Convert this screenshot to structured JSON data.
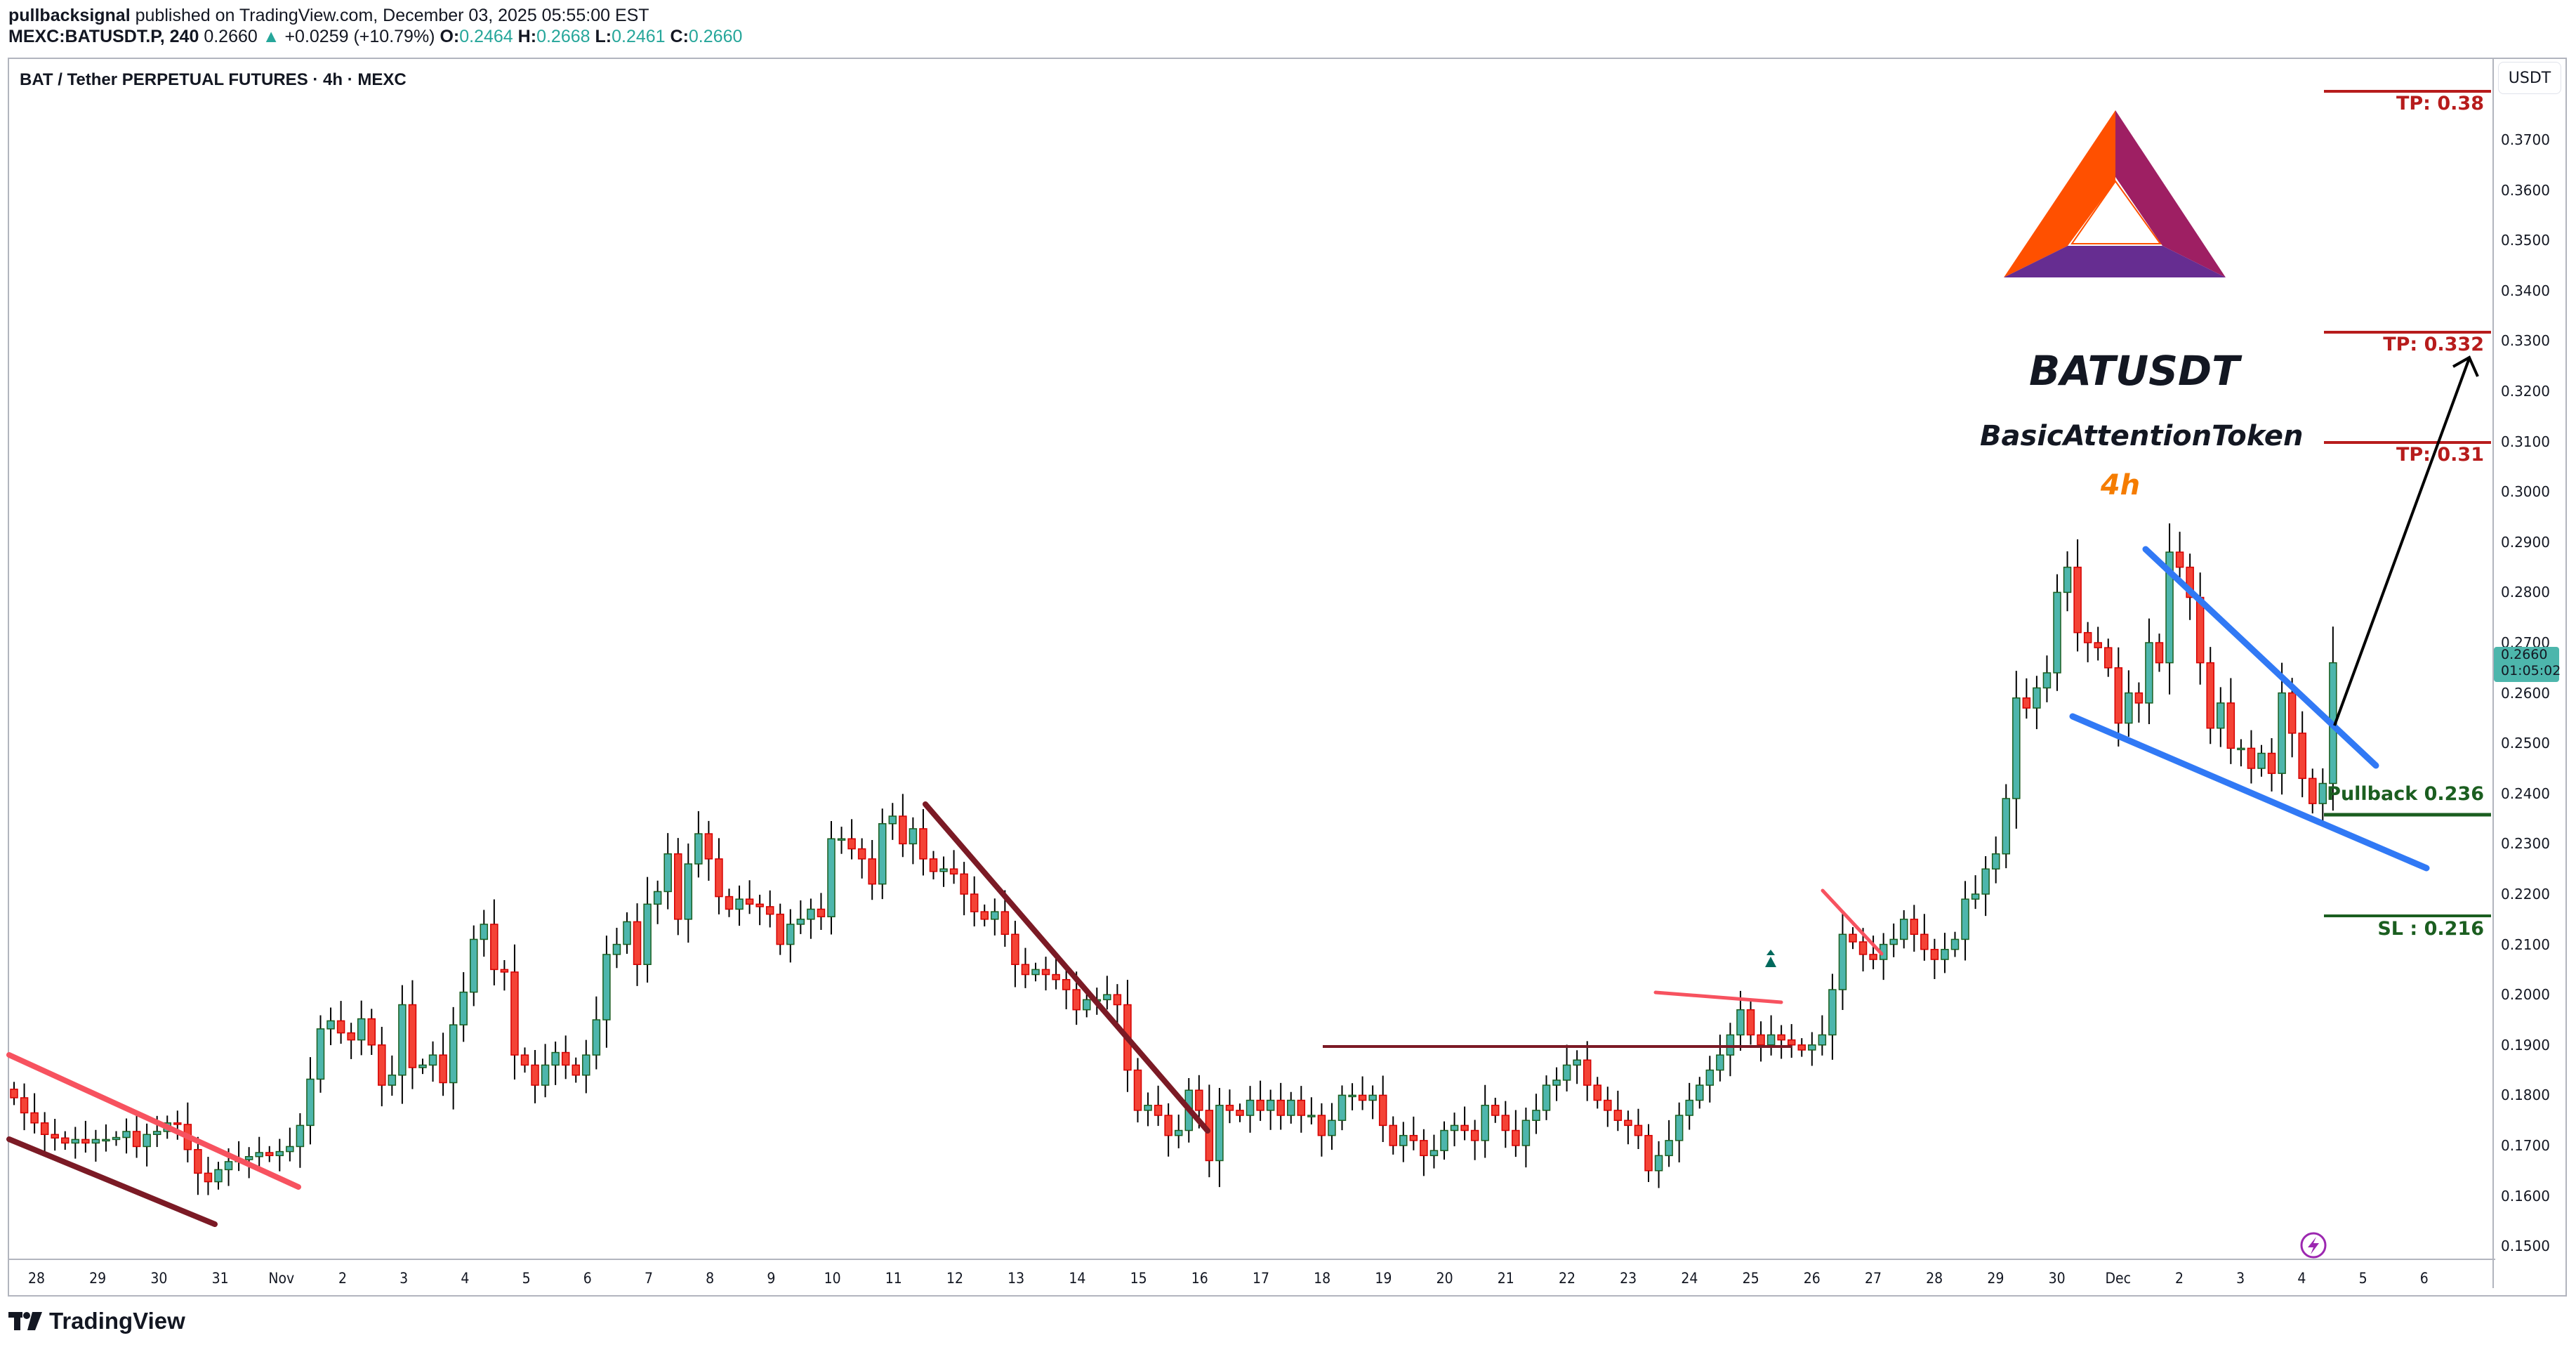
{
  "header": {
    "author": "pullbacksignal",
    "published_text": " published on TradingView.com, December 03, 2025 05:55:00 EST",
    "symbol": "MEXC:BATUSDT.P, 240",
    "last": "0.2660",
    "change_arrow": "▲",
    "change": "+0.0259 (+10.79%)",
    "o_label": "O:",
    "o": "0.2464",
    "h_label": "H:",
    "h": "0.2668",
    "l_label": "L:",
    "l": "0.2461",
    "c_label": "C:",
    "c": "0.2660"
  },
  "legend": {
    "title": "BAT / Tether PERPETUAL FUTURES · 4h · MEXC"
  },
  "price_axis": {
    "currency_button": "USDT",
    "last_price": "0.2660",
    "countdown": "01:05:02"
  },
  "annotations": {
    "ticker": "BATUSDT",
    "name": "BasicAttentionToken",
    "timeframe": "4h",
    "tp3": "TP: 0.38",
    "tp2": "TP: 0.332",
    "tp1": "TP: 0.31",
    "pullback": "Pullback 0.236",
    "sl": "SL : 0.216"
  },
  "footer": {
    "brand": "TradingView"
  },
  "colors": {
    "bull_fill": "#4db6ac",
    "bull_border": "#1b5e20",
    "bear_fill": "#f44336",
    "bear_border": "#d50000",
    "wick": "#000000",
    "tp_line": "#b71c1c",
    "green_line": "#1b5e20",
    "wedge_blue": "#3179f5",
    "trend_pink": "#f7525f",
    "trend_maroon": "#7b1a25"
  },
  "chart_data": {
    "type": "candlestick",
    "title": "BAT / Tether PERPETUAL FUTURES · 4h · MEXC",
    "xlabel": "",
    "ylabel": "USDT",
    "ylim": [
      0.145,
      0.381
    ],
    "y_ticks": [
      "0.3700",
      "0.3600",
      "0.3500",
      "0.3400",
      "0.3300",
      "0.3200",
      "0.3100",
      "0.3000",
      "0.2900",
      "0.2800",
      "0.2700",
      "0.2600",
      "0.2500",
      "0.2400",
      "0.2300",
      "0.2200",
      "0.2100",
      "0.2000",
      "0.1900",
      "0.1800",
      "0.1700",
      "0.1600",
      "0.1500"
    ],
    "x_ticks": [
      "28",
      "29",
      "30",
      "31",
      "Nov",
      "2",
      "3",
      "4",
      "5",
      "6",
      "7",
      "8",
      "9",
      "10",
      "11",
      "12",
      "13",
      "14",
      "15",
      "16",
      "17",
      "18",
      "19",
      "20",
      "21",
      "22",
      "23",
      "24",
      "25",
      "26",
      "27",
      "28",
      "29",
      "30",
      "Dec",
      "2",
      "3",
      "4",
      "5",
      "6"
    ],
    "grid": false,
    "legend_position": "top-left",
    "last_price": 0.266,
    "levels": [
      {
        "label": "TP: 0.38",
        "price": 0.38
      },
      {
        "label": "TP: 0.332",
        "price": 0.332
      },
      {
        "label": "TP: 0.31",
        "price": 0.31
      },
      {
        "label": "Pullback 0.236",
        "price": 0.236
      },
      {
        "label": "SL : 0.216",
        "price": 0.216
      }
    ],
    "closes": [
      0.1795,
      0.1765,
      0.1745,
      0.1722,
      0.1715,
      0.1705,
      0.1712,
      0.1705,
      0.1712,
      0.1712,
      0.1716,
      0.1728,
      0.1698,
      0.1722,
      0.1728,
      0.1745,
      0.1742,
      0.1692,
      0.1645,
      0.1628,
      0.1652,
      0.1668,
      0.1672,
      0.1678,
      0.1686,
      0.168,
      0.1688,
      0.1698,
      0.174,
      0.1832,
      0.1932,
      0.1948,
      0.1924,
      0.191,
      0.1952,
      0.19,
      0.182,
      0.184,
      0.198,
      0.1855,
      0.186,
      0.188,
      0.1825,
      0.194,
      0.2005,
      0.211,
      0.214,
      0.205,
      0.2045,
      0.188,
      0.186,
      0.182,
      0.186,
      0.1885,
      0.186,
      0.184,
      0.188,
      0.195,
      0.208,
      0.21,
      0.2145,
      0.206,
      0.218,
      0.2205,
      0.228,
      0.215,
      0.226,
      0.232,
      0.227,
      0.2195,
      0.217,
      0.219,
      0.218,
      0.2175,
      0.216,
      0.21,
      0.214,
      0.215,
      0.217,
      0.2155,
      0.231,
      0.231,
      0.229,
      0.227,
      0.222,
      0.234,
      0.2355,
      0.23,
      0.233,
      0.227,
      0.2245,
      0.225,
      0.224,
      0.22,
      0.2165,
      0.215,
      0.2165,
      0.212,
      0.206,
      0.204,
      0.205,
      0.204,
      0.203,
      0.201,
      0.197,
      0.199,
      0.199,
      0.2,
      0.198,
      0.185,
      0.177,
      0.178,
      0.176,
      0.172,
      0.173,
      0.181,
      0.177,
      0.167,
      0.178,
      0.177,
      0.176,
      0.179,
      0.177,
      0.179,
      0.176,
      0.179,
      0.176,
      0.176,
      0.172,
      0.175,
      0.18,
      0.18,
      0.179,
      0.18,
      0.174,
      0.17,
      0.172,
      0.171,
      0.168,
      0.169,
      0.173,
      0.174,
      0.173,
      0.171,
      0.178,
      0.176,
      0.173,
      0.17,
      0.175,
      0.177,
      0.182,
      0.183,
      0.186,
      0.187,
      0.182,
      0.179,
      0.177,
      0.175,
      0.174,
      0.172,
      0.165,
      0.168,
      0.171,
      0.176,
      0.179,
      0.182,
      0.185,
      0.188,
      0.192,
      0.197,
      0.192,
      0.19,
      0.192,
      0.191,
      0.19,
      0.189,
      0.19,
      0.192,
      0.201,
      0.212,
      0.2105,
      0.208,
      0.207,
      0.21,
      0.211,
      0.215,
      0.212,
      0.209,
      0.207,
      0.209,
      0.211,
      0.219,
      0.22,
      0.225,
      0.228,
      0.239,
      0.259,
      0.257,
      0.261,
      0.264,
      0.28,
      0.285,
      0.272,
      0.27,
      0.269,
      0.265,
      0.254,
      0.26,
      0.258,
      0.27,
      0.266,
      0.288,
      0.285,
      0.279,
      0.266,
      0.253,
      0.258,
      0.249,
      0.249,
      0.245,
      0.248,
      0.244,
      0.26,
      0.252,
      0.243,
      0.238,
      0.242,
      0.266
    ]
  }
}
